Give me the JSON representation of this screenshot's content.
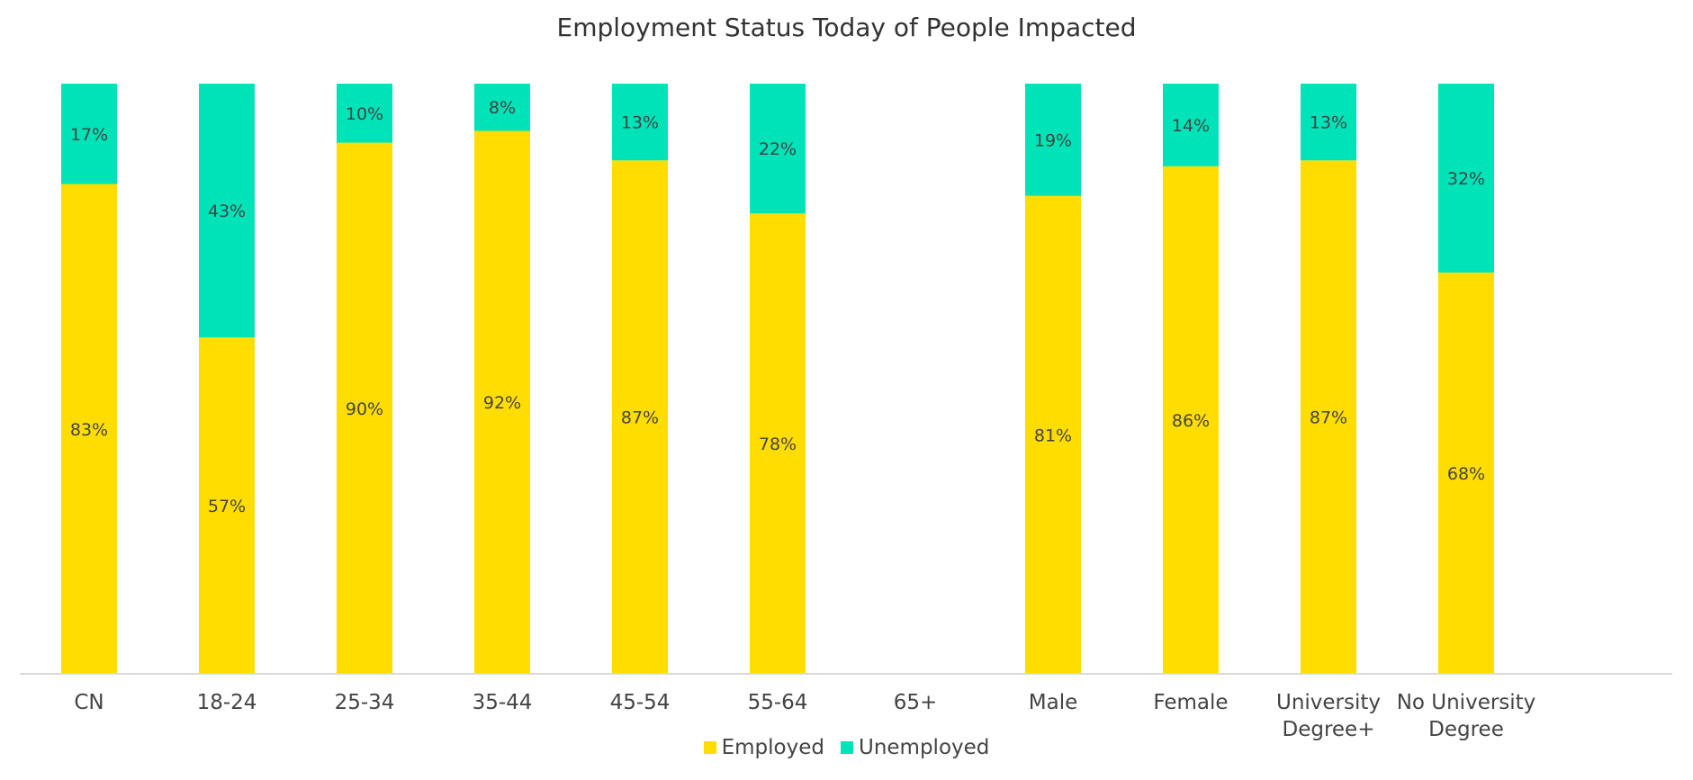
{
  "chart_data": {
    "type": "bar",
    "stacked": true,
    "title": "Employment Status Today of People Impacted",
    "categories": [
      "CN",
      "18-24",
      "25-34",
      "35-44",
      "45-54",
      "55-64",
      "65+",
      "Male",
      "Female",
      "University Degree+",
      "No University Degree"
    ],
    "series": [
      {
        "name": "Employed",
        "color": "#FFDD00",
        "values": [
          83,
          57,
          90,
          92,
          87,
          78,
          null,
          81,
          86,
          87,
          68
        ],
        "labels": [
          "83%",
          "57%",
          "90%",
          "92%",
          "87%",
          "78%",
          "",
          "81%",
          "86%",
          "87%",
          "68%"
        ]
      },
      {
        "name": "Unemployed",
        "color": "#00E3B8",
        "values": [
          17,
          43,
          10,
          8,
          13,
          22,
          null,
          19,
          14,
          13,
          32
        ],
        "labels": [
          "17%",
          "43%",
          "10%",
          "8%",
          "13%",
          "22%",
          "",
          "19%",
          "14%",
          "13%",
          "32%"
        ]
      }
    ],
    "ylim": [
      0,
      100
    ],
    "xlabel": "",
    "ylabel": "",
    "grid": false,
    "legend": "bottom"
  }
}
